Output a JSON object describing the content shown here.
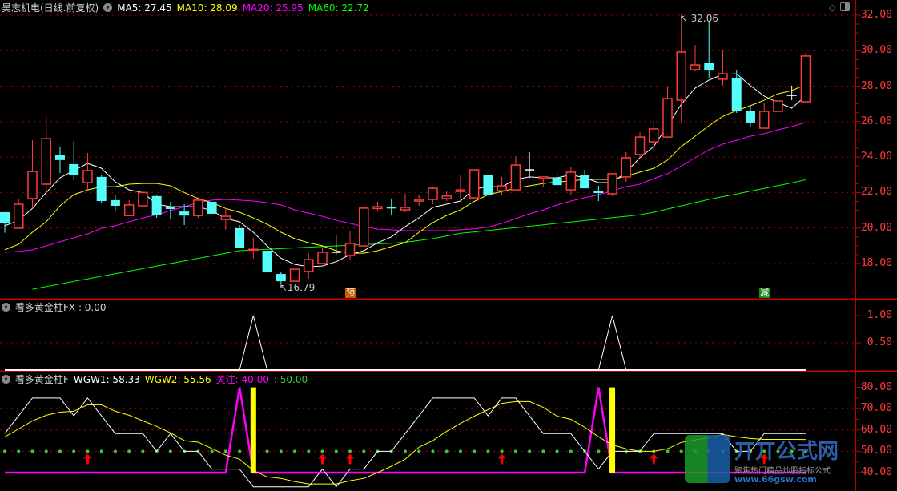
{
  "header": {
    "title": "昊志机电(日线.前复权)",
    "ma5": "MA5: 27.45",
    "ma10": "MA10: 28.09",
    "ma20": "MA20: 25.95",
    "ma60": "MA60: 22.72"
  },
  "panel2": {
    "title": "看多黄金柱FX : 0.00"
  },
  "panel3": {
    "title": "看多黄金柱F",
    "wgw1": "WGW1: 58.33",
    "wgw2": "WGW2: 55.56",
    "focus": "关注: 40.00",
    "extra": ": 50.00"
  },
  "annotations": {
    "high": "32.06",
    "low": "16.79",
    "signal_pre": "预",
    "signal_reduce": "减"
  },
  "icons": {
    "collapse": "chevron-down-circle-icon",
    "diamond": "diamond-icon",
    "layout": "window-toggle-icon"
  },
  "colors": {
    "background": "#000000",
    "axis": "#ff3c3c",
    "up": "#ff3c3c",
    "down": "#54fcfc",
    "ma5": "#ffffff",
    "ma10": "#ffff00",
    "ma20": "#ff00ff",
    "ma60": "#00ff00",
    "wgw1": "#ffffff",
    "wgw2": "#ffff00",
    "focus": "#ff00ff",
    "dots": "#3cc83c",
    "bar": "#ffff00",
    "arrow": "#ff0000"
  },
  "axes": {
    "price_ticks": [
      "32.00",
      "30.00",
      "28.00",
      "26.00",
      "24.00",
      "22.00",
      "20.00",
      "18.00"
    ],
    "fx_ticks": [
      "1.00",
      "0.50"
    ],
    "wgw_ticks": [
      "80.00",
      "70.00",
      "60.00",
      "50.00",
      "40.00"
    ]
  },
  "watermark": {
    "brand": "丌丌公式网",
    "slogan": "聚焦热门精品炒股指标公式",
    "site": "www.66gsw.com"
  },
  "chart_data": {
    "type": "candlestick",
    "ylim": [
      17,
      32
    ],
    "candles_ohlc": [
      [
        20.89,
        20.9,
        19.73,
        20.3
      ],
      [
        19.99,
        21.66,
        19.99,
        21.34
      ],
      [
        21.66,
        24.95,
        21.2,
        23.19
      ],
      [
        22.47,
        26.4,
        21.88,
        25.04
      ],
      [
        24.1,
        24.6,
        23.1,
        23.83
      ],
      [
        23.6,
        24.9,
        22.7,
        22.97
      ],
      [
        22.56,
        24.23,
        22.15,
        23.24
      ],
      [
        22.88,
        23.0,
        21.4,
        21.52
      ],
      [
        21.57,
        21.88,
        21.0,
        21.25
      ],
      [
        20.7,
        21.57,
        20.7,
        21.3
      ],
      [
        21.25,
        22.38,
        21.07,
        22.0
      ],
      [
        21.8,
        21.88,
        20.57,
        20.75
      ],
      [
        21.2,
        21.48,
        20.48,
        21.07
      ],
      [
        20.93,
        21.34,
        20.17,
        20.7
      ],
      [
        20.7,
        21.75,
        20.57,
        21.57
      ],
      [
        21.48,
        21.48,
        20.8,
        20.8
      ],
      [
        20.48,
        21.1,
        19.9,
        20.66
      ],
      [
        19.99,
        20.17,
        18.9,
        18.9
      ],
      [
        18.75,
        19.45,
        18.27,
        18.8
      ],
      [
        18.72,
        18.72,
        17.46,
        17.5
      ],
      [
        17.41,
        17.5,
        16.79,
        17.0
      ],
      [
        17.0,
        17.68,
        17.0,
        17.68
      ],
      [
        17.55,
        18.58,
        17.14,
        18.22
      ],
      [
        18.0,
        18.86,
        18.0,
        18.63
      ],
      [
        18.63,
        19.58,
        18.5,
        18.63
      ],
      [
        18.45,
        19.8,
        18.2,
        19.13
      ],
      [
        18.99,
        21.25,
        18.99,
        21.12
      ],
      [
        21.1,
        21.48,
        20.93,
        21.2
      ],
      [
        21.2,
        21.66,
        20.75,
        21.1
      ],
      [
        21.02,
        21.93,
        20.89,
        21.16
      ],
      [
        21.52,
        21.88,
        21.25,
        21.61
      ],
      [
        21.61,
        22.33,
        21.34,
        22.24
      ],
      [
        21.66,
        22.1,
        21.52,
        21.8
      ],
      [
        22.06,
        22.97,
        21.6,
        22.15
      ],
      [
        21.7,
        23.28,
        21.7,
        23.28
      ],
      [
        22.97,
        23.0,
        21.88,
        21.88
      ],
      [
        22.1,
        22.88,
        21.88,
        22.38
      ],
      [
        22.15,
        24.05,
        22.15,
        23.55
      ],
      [
        23.28,
        24.28,
        22.83,
        23.28
      ],
      [
        22.79,
        22.88,
        22.33,
        22.88
      ],
      [
        22.83,
        23.15,
        22.33,
        22.42
      ],
      [
        22.15,
        23.42,
        21.88,
        23.15
      ],
      [
        23.0,
        23.28,
        22.24,
        22.24
      ],
      [
        22.1,
        22.38,
        21.52,
        21.97
      ],
      [
        21.93,
        23.06,
        21.8,
        23.06
      ],
      [
        22.88,
        24.28,
        22.6,
        23.96
      ],
      [
        24.14,
        25.4,
        23.96,
        25.13
      ],
      [
        24.86,
        26.08,
        24.41,
        25.59
      ],
      [
        25.13,
        27.98,
        25.13,
        27.3
      ],
      [
        27.21,
        32.06,
        25.95,
        29.92
      ],
      [
        28.93,
        30.33,
        28.84,
        29.2
      ],
      [
        29.29,
        31.6,
        28.48,
        28.88
      ],
      [
        28.39,
        30.06,
        28.03,
        28.7
      ],
      [
        28.48,
        28.93,
        26.49,
        26.62
      ],
      [
        26.58,
        26.9,
        25.68,
        25.95
      ],
      [
        25.63,
        27.08,
        25.63,
        26.58
      ],
      [
        26.58,
        27.39,
        26.4,
        27.17
      ],
      [
        27.48,
        28.03,
        27.21,
        27.48
      ],
      [
        27.12,
        29.88,
        27.12,
        29.7
      ]
    ],
    "ma5": [
      20.12,
      20.43,
      21.1,
      22.0,
      22.83,
      23.24,
      23.64,
      23.37,
      22.6,
      22.15,
      22.0,
      21.34,
      21.2,
      21.2,
      21.2,
      20.98,
      20.53,
      20.35,
      19.76,
      18.99,
      18.3,
      17.95,
      17.82,
      17.86,
      18.1,
      18.5,
      18.72,
      19.17,
      19.5,
      20.08,
      20.57,
      21.16,
      21.34,
      21.52,
      22.2,
      22.33,
      22.33,
      22.74,
      22.88,
      22.83,
      22.83,
      23.0,
      22.83,
      22.56,
      22.56,
      23.15,
      23.96,
      24.6,
      25.77,
      26.99,
      27.89,
      28.34,
      28.66,
      28.7,
      28.03,
      27.44,
      27.08,
      26.76,
      27.45
    ],
    "ma10": [
      18.77,
      19.08,
      19.76,
      20.35,
      21.25,
      21.88,
      22.15,
      22.33,
      22.33,
      22.47,
      22.51,
      22.51,
      22.38,
      22.0,
      21.66,
      21.43,
      21.1,
      20.89,
      20.57,
      20.21,
      19.76,
      19.4,
      19.17,
      18.99,
      18.72,
      18.58,
      18.58,
      18.72,
      18.95,
      19.17,
      19.76,
      20.3,
      20.71,
      21.02,
      21.5,
      21.88,
      22.06,
      22.24,
      22.38,
      22.51,
      22.6,
      22.65,
      22.74,
      22.74,
      22.74,
      22.92,
      23.15,
      23.37,
      23.83,
      24.6,
      25.18,
      25.77,
      26.3,
      26.62,
      26.9,
      27.21,
      27.57,
      27.75,
      28.09
    ],
    "ma20": [
      18.63,
      18.68,
      18.77,
      18.99,
      19.22,
      19.45,
      19.67,
      19.99,
      20.12,
      20.35,
      20.57,
      20.75,
      20.98,
      21.2,
      21.43,
      21.57,
      21.61,
      21.57,
      21.52,
      21.43,
      21.3,
      21.02,
      20.84,
      20.66,
      20.43,
      20.26,
      20.08,
      19.94,
      19.9,
      19.85,
      19.85,
      19.85,
      19.85,
      19.9,
      19.95,
      20.05,
      20.26,
      20.53,
      20.8,
      21.02,
      21.3,
      21.52,
      21.7,
      21.88,
      22.1,
      22.33,
      22.47,
      22.79,
      23.06,
      23.5,
      23.96,
      24.41,
      24.73,
      24.95,
      25.18,
      25.32,
      25.54,
      25.72,
      25.95
    ],
    "ma60": [
      null,
      null,
      16.55,
      16.7,
      16.84,
      16.99,
      17.13,
      17.28,
      17.42,
      17.57,
      17.71,
      17.86,
      18.0,
      18.14,
      18.29,
      18.43,
      18.58,
      18.72,
      18.76,
      18.8,
      18.84,
      18.88,
      18.92,
      18.96,
      18.99,
      19.03,
      19.07,
      19.1,
      19.14,
      19.2,
      19.3,
      19.4,
      19.55,
      19.7,
      19.78,
      19.86,
      19.94,
      20.02,
      20.1,
      20.18,
      20.26,
      20.34,
      20.42,
      20.5,
      20.58,
      20.66,
      20.75,
      20.89,
      21.07,
      21.25,
      21.43,
      21.61,
      21.77,
      21.92,
      22.08,
      22.23,
      22.39,
      22.54,
      22.72
    ],
    "signals": [
      {
        "index": 25,
        "label_key": "signal_pre",
        "color": "#c85a00"
      },
      {
        "index": 55,
        "label_key": "signal_reduce",
        "color": "#1a8a1a"
      }
    ],
    "high_index": 49,
    "low_index": 20,
    "fx": {
      "ylim": [
        0,
        1
      ],
      "values": [
        0,
        0,
        0,
        0,
        0,
        0,
        0,
        0,
        0,
        0,
        0,
        0,
        0,
        0,
        0,
        0,
        0,
        0,
        1,
        0,
        0,
        0,
        0,
        0,
        0,
        0,
        0,
        0,
        0,
        0,
        0,
        0,
        0,
        0,
        0,
        0,
        0,
        0,
        0,
        0,
        0,
        0,
        0,
        0,
        1,
        0,
        0,
        0,
        0,
        0,
        0,
        0,
        0,
        0,
        0,
        0,
        0,
        0,
        0
      ]
    },
    "wgw": {
      "ylim": [
        40,
        80
      ],
      "wgw1": [
        58.33,
        66.67,
        75,
        75,
        75,
        66.67,
        75,
        66.67,
        58.33,
        58.33,
        58.33,
        50,
        58.33,
        50,
        50,
        41.67,
        41.67,
        41.67,
        33.33,
        33.33,
        33.33,
        33.33,
        33.33,
        41.67,
        33.33,
        41.67,
        41.67,
        50,
        50,
        58.33,
        66.67,
        75,
        75,
        75,
        75,
        66.67,
        75,
        75,
        66.67,
        58.33,
        58.33,
        58.33,
        50,
        41.67,
        50,
        50,
        50,
        58.33,
        58.33,
        58.33,
        58.33,
        58.33,
        58.33,
        50,
        50,
        58.33,
        58.33,
        58.33,
        58.33
      ],
      "wgw2": [
        56.8,
        60.5,
        64.3,
        66.9,
        68.4,
        68.8,
        71.8,
        71.8,
        68.8,
        66.9,
        64.3,
        61.7,
        58.7,
        55,
        54.3,
        51.3,
        48.2,
        46.3,
        41,
        38,
        37.3,
        35.8,
        34.7,
        34.7,
        34.7,
        36.2,
        37.3,
        40,
        43,
        46.3,
        51.9,
        55,
        59.4,
        63.1,
        66.5,
        69.5,
        72.5,
        73.3,
        73.3,
        70.6,
        66.5,
        65,
        61.3,
        56.8,
        53,
        51.2,
        50,
        50,
        51.2,
        54.2,
        55.3,
        56.4,
        57.9,
        56.8,
        56,
        55.6,
        55.6,
        55.6,
        55.56
      ],
      "focus": [
        40,
        40,
        40,
        40,
        40,
        40,
        40,
        40,
        40,
        40,
        40,
        40,
        40,
        40,
        40,
        40,
        40,
        80,
        40,
        40,
        40,
        40,
        40,
        40,
        40,
        40,
        40,
        40,
        40,
        40,
        40,
        40,
        40,
        40,
        40,
        40,
        40,
        40,
        40,
        40,
        40,
        40,
        40,
        80,
        40,
        40,
        40,
        40,
        40,
        40,
        40,
        40,
        40,
        40,
        40,
        40,
        40,
        40,
        40
      ],
      "dot_level": 50,
      "golden_bars": [
        18,
        44
      ],
      "up_arrows": [
        6,
        23,
        25,
        36,
        47,
        55
      ]
    }
  }
}
